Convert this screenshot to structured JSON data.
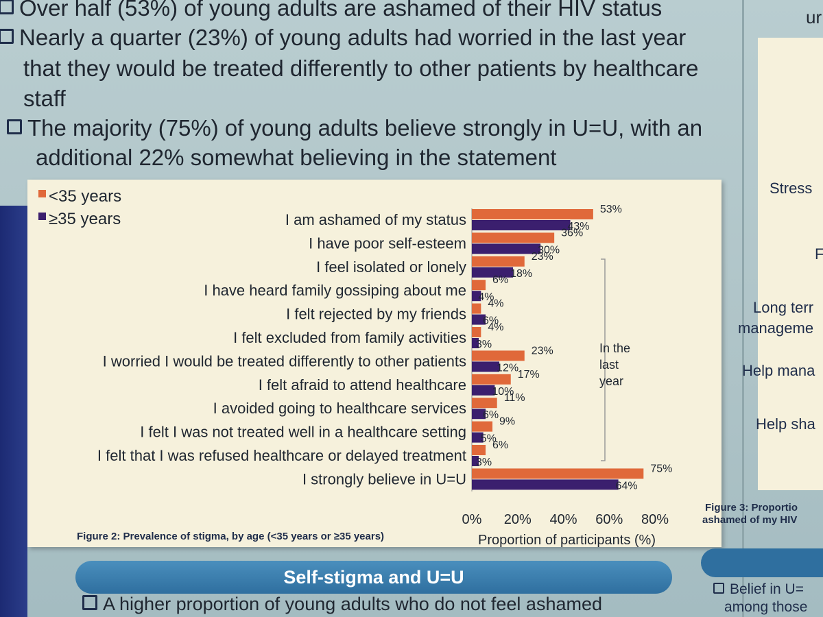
{
  "bullets": [
    {
      "text": "Over half (53%) of young adults are ashamed of their HIV status"
    },
    {
      "text": "Nearly a quarter (23%) of young adults had worried in the last year"
    },
    {
      "text": "that they would be treated differently to other patients by healthcare"
    },
    {
      "text": "staff"
    },
    {
      "text": "The majority (75%) of young adults believe strongly in U=U, with an"
    },
    {
      "text": "additional 22% somewhat believing in the statement"
    }
  ],
  "chart_data": {
    "type": "bar",
    "orientation": "horizontal",
    "categories": [
      "I am ashamed of my status",
      "I have poor self-esteem",
      "I feel isolated or lonely",
      "I have heard family gossiping about me",
      "I felt rejected by my friends",
      "I felt excluded from family activities",
      "I worried I would be treated differently to other patients",
      "I felt afraid to attend healthcare",
      "I avoided going to healthcare services",
      "I felt I was not treated well in a healthcare setting",
      "I felt that I was refused healthcare or delayed treatment",
      "I strongly believe in U=U"
    ],
    "series": [
      {
        "name": "<35 years",
        "color": "#e0693a",
        "values": [
          53,
          36,
          23,
          6,
          4,
          4,
          23,
          17,
          11,
          9,
          6,
          75
        ],
        "labels": [
          "53%",
          "36%",
          "23%",
          "6%",
          "4%",
          "4%",
          "23%",
          "17%",
          "11%",
          "9%",
          "6%",
          "75%"
        ]
      },
      {
        "name": "≥35 years",
        "color": "#3b1f6e",
        "values": [
          43,
          30,
          18,
          4,
          6,
          3,
          12,
          10,
          6,
          5,
          3,
          64
        ],
        "labels": [
          "43%",
          "30%",
          "18%",
          "4%",
          "6%",
          "3%",
          "12%",
          "10%",
          "6%",
          "5%",
          "3%",
          "64%"
        ]
      }
    ],
    "xlim": [
      0,
      80
    ],
    "xticks": [
      "0%",
      "20%",
      "40%",
      "60%",
      "80%"
    ],
    "xlabel": "Proportion of participants (%)",
    "annotation": [
      "In the",
      "last",
      "year"
    ],
    "legend": "top-left",
    "caption": "Figure 2: Prevalence of stigma, by age (<35 years or ≥35 years)"
  },
  "section": {
    "title": "Self-stigma and U=U"
  },
  "bottom_bullet": {
    "text": "A higher proportion of young adults who do not feel ashamed"
  },
  "right_panel": {
    "top_fragment": "ur",
    "items": [
      "Stress",
      "F",
      "Long terr",
      "manageme",
      "Help mana",
      "Help sha"
    ],
    "caption_1": "Figure 3: Proportio",
    "caption_2": "ashamed of my HIV",
    "bottom_1": "Belief in U=",
    "bottom_2": "among those"
  }
}
